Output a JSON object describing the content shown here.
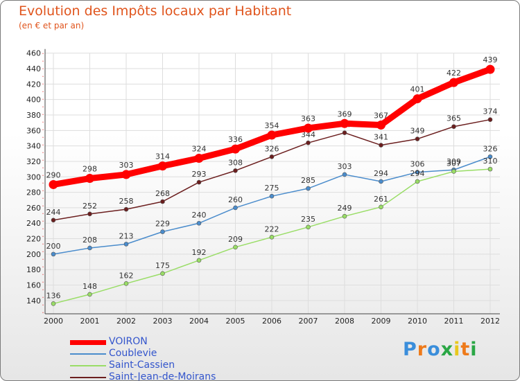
{
  "chart_data": {
    "type": "line",
    "title": "Evolution des Impôts locaux par Habitant",
    "subtitle": "(en € et par an)",
    "xlabel": "",
    "ylabel": "",
    "categories": [
      "2000",
      "2001",
      "2002",
      "2003",
      "2004",
      "2005",
      "2006",
      "2007",
      "2008",
      "2009",
      "2010",
      "2011",
      "2012"
    ],
    "ylim": [
      130,
      460
    ],
    "yticks": [
      140,
      160,
      180,
      200,
      220,
      240,
      260,
      280,
      300,
      320,
      340,
      360,
      380,
      400,
      420,
      440,
      460
    ],
    "grid": true,
    "legend": "bottom-left",
    "series": [
      {
        "name": "VOIRON",
        "color": "#ff0000",
        "values": [
          290,
          298,
          303,
          314,
          324,
          336,
          354,
          363,
          369,
          367,
          401,
          422,
          439
        ]
      },
      {
        "name": "Coublevie",
        "color": "#4a8ccc",
        "values": [
          200,
          208,
          213,
          229,
          240,
          260,
          275,
          285,
          303,
          294,
          306,
          309,
          326
        ]
      },
      {
        "name": "Saint-Cassien",
        "color": "#99dd66",
        "values": [
          136,
          148,
          162,
          175,
          192,
          209,
          222,
          235,
          249,
          261,
          294,
          307,
          310
        ]
      },
      {
        "name": "Saint-Jean-de-Moirans",
        "color": "#6b1e1e",
        "values": [
          244,
          252,
          258,
          268,
          293,
          308,
          326,
          344,
          357,
          341,
          349,
          365,
          374
        ]
      }
    ]
  },
  "logo": {
    "text": "Proxiti",
    "letter_colors": [
      "#3a8edb",
      "#ee7a1a",
      "#3a8edb",
      "#2aa745",
      "#e8c81e",
      "#ee7a1a",
      "#2aa745"
    ]
  }
}
